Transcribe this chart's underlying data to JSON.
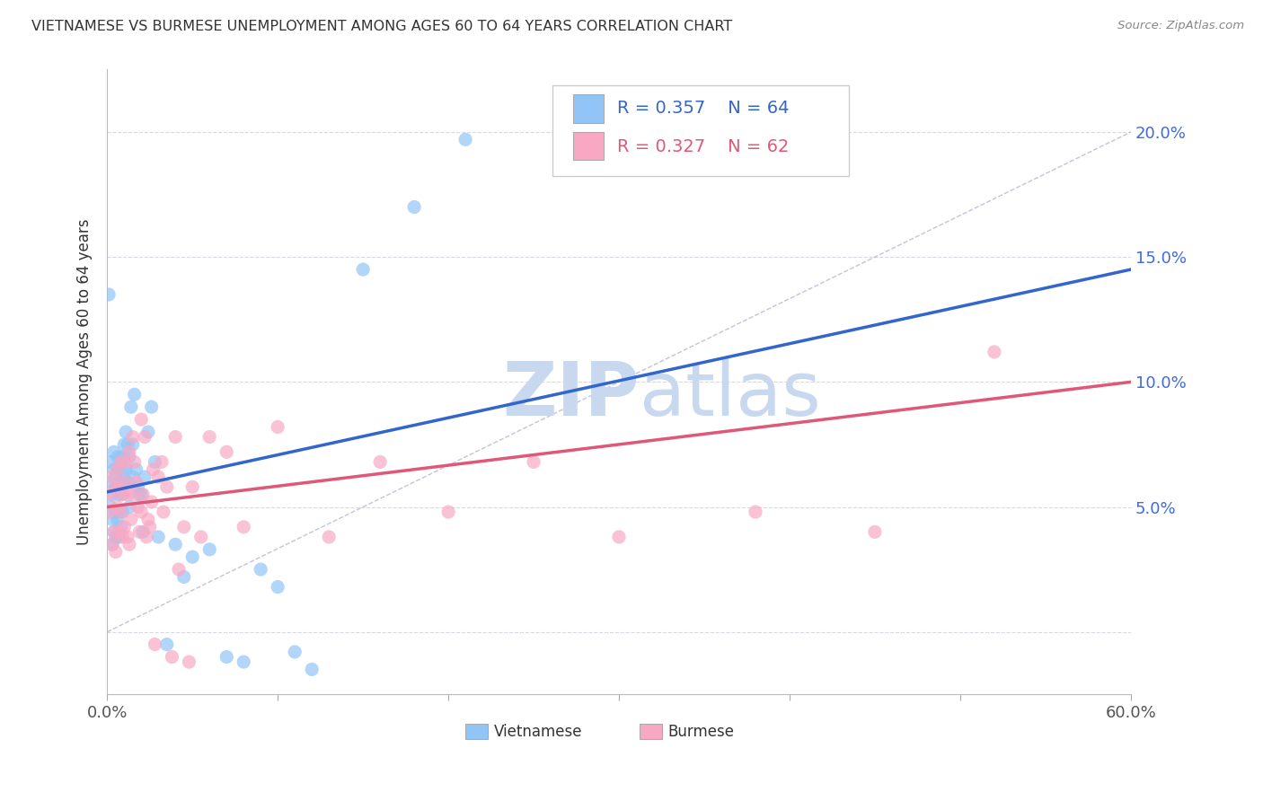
{
  "title": "VIETNAMESE VS BURMESE UNEMPLOYMENT AMONG AGES 60 TO 64 YEARS CORRELATION CHART",
  "source": "Source: ZipAtlas.com",
  "ylabel": "Unemployment Among Ages 60 to 64 years",
  "xlim": [
    0.0,
    0.6
  ],
  "ylim": [
    -0.025,
    0.225
  ],
  "yticks": [
    0.0,
    0.05,
    0.1,
    0.15,
    0.2
  ],
  "ytick_labels_right": [
    "",
    "5.0%",
    "10.0%",
    "15.0%",
    "20.0%"
  ],
  "xticks": [
    0.0,
    0.1,
    0.2,
    0.3,
    0.4,
    0.5,
    0.6
  ],
  "xtick_labels": [
    "0.0%",
    "",
    "",
    "",
    "",
    "",
    "60.0%"
  ],
  "viet_R": 0.357,
  "viet_N": 64,
  "burm_R": 0.327,
  "burm_N": 62,
  "viet_color": "#92c5f7",
  "burm_color": "#f9a8c4",
  "viet_line_color": "#3366cc",
  "burm_line_color": "#e05878",
  "ref_line_color": "#aaaacc",
  "background_color": "#ffffff",
  "grid_color": "#d8d8e8",
  "viet_scatter_x": [
    0.001,
    0.001,
    0.002,
    0.002,
    0.003,
    0.003,
    0.003,
    0.004,
    0.004,
    0.004,
    0.005,
    0.005,
    0.005,
    0.005,
    0.006,
    0.006,
    0.006,
    0.007,
    0.007,
    0.007,
    0.007,
    0.008,
    0.008,
    0.008,
    0.009,
    0.009,
    0.009,
    0.01,
    0.01,
    0.01,
    0.011,
    0.011,
    0.012,
    0.012,
    0.013,
    0.013,
    0.014,
    0.015,
    0.015,
    0.016,
    0.017,
    0.018,
    0.019,
    0.02,
    0.021,
    0.022,
    0.024,
    0.026,
    0.028,
    0.03,
    0.035,
    0.04,
    0.045,
    0.05,
    0.06,
    0.07,
    0.08,
    0.09,
    0.1,
    0.11,
    0.12,
    0.15,
    0.18,
    0.21
  ],
  "viet_scatter_y": [
    0.06,
    0.135,
    0.068,
    0.05,
    0.045,
    0.055,
    0.035,
    0.065,
    0.072,
    0.04,
    0.058,
    0.062,
    0.048,
    0.038,
    0.065,
    0.07,
    0.045,
    0.055,
    0.06,
    0.048,
    0.038,
    0.058,
    0.07,
    0.042,
    0.065,
    0.055,
    0.048,
    0.07,
    0.06,
    0.075,
    0.065,
    0.08,
    0.075,
    0.06,
    0.07,
    0.05,
    0.09,
    0.075,
    0.062,
    0.095,
    0.065,
    0.058,
    0.055,
    0.055,
    0.04,
    0.062,
    0.08,
    0.09,
    0.068,
    0.038,
    -0.005,
    0.035,
    0.022,
    0.03,
    0.033,
    -0.01,
    -0.012,
    0.025,
    0.018,
    -0.008,
    -0.015,
    0.145,
    0.17,
    0.197
  ],
  "burm_scatter_x": [
    0.001,
    0.002,
    0.003,
    0.003,
    0.004,
    0.005,
    0.005,
    0.006,
    0.006,
    0.007,
    0.007,
    0.008,
    0.008,
    0.009,
    0.009,
    0.01,
    0.01,
    0.011,
    0.012,
    0.012,
    0.013,
    0.013,
    0.014,
    0.015,
    0.015,
    0.016,
    0.017,
    0.018,
    0.019,
    0.02,
    0.02,
    0.021,
    0.022,
    0.023,
    0.024,
    0.025,
    0.026,
    0.027,
    0.028,
    0.03,
    0.032,
    0.033,
    0.035,
    0.038,
    0.04,
    0.042,
    0.045,
    0.048,
    0.05,
    0.055,
    0.06,
    0.07,
    0.08,
    0.1,
    0.13,
    0.16,
    0.2,
    0.25,
    0.3,
    0.38,
    0.45,
    0.52
  ],
  "burm_scatter_y": [
    0.048,
    0.055,
    0.035,
    0.062,
    0.04,
    0.058,
    0.032,
    0.05,
    0.065,
    0.04,
    0.058,
    0.048,
    0.068,
    0.038,
    0.055,
    0.042,
    0.06,
    0.068,
    0.038,
    0.055,
    0.035,
    0.072,
    0.045,
    0.055,
    0.078,
    0.068,
    0.06,
    0.05,
    0.04,
    0.085,
    0.048,
    0.055,
    0.078,
    0.038,
    0.045,
    0.042,
    0.052,
    0.065,
    -0.005,
    0.062,
    0.068,
    0.048,
    0.058,
    -0.01,
    0.078,
    0.025,
    0.042,
    -0.012,
    0.058,
    0.038,
    0.078,
    0.072,
    0.042,
    0.082,
    0.038,
    0.068,
    0.048,
    0.068,
    0.038,
    0.048,
    0.04,
    0.112
  ],
  "viet_trend_x": [
    0.0,
    0.6
  ],
  "viet_trend_y": [
    0.056,
    0.145
  ],
  "burm_trend_x": [
    0.0,
    0.6
  ],
  "burm_trend_y": [
    0.05,
    0.1
  ],
  "ref_line_x": [
    0.0,
    0.6
  ],
  "ref_line_y": [
    0.0,
    0.2
  ]
}
